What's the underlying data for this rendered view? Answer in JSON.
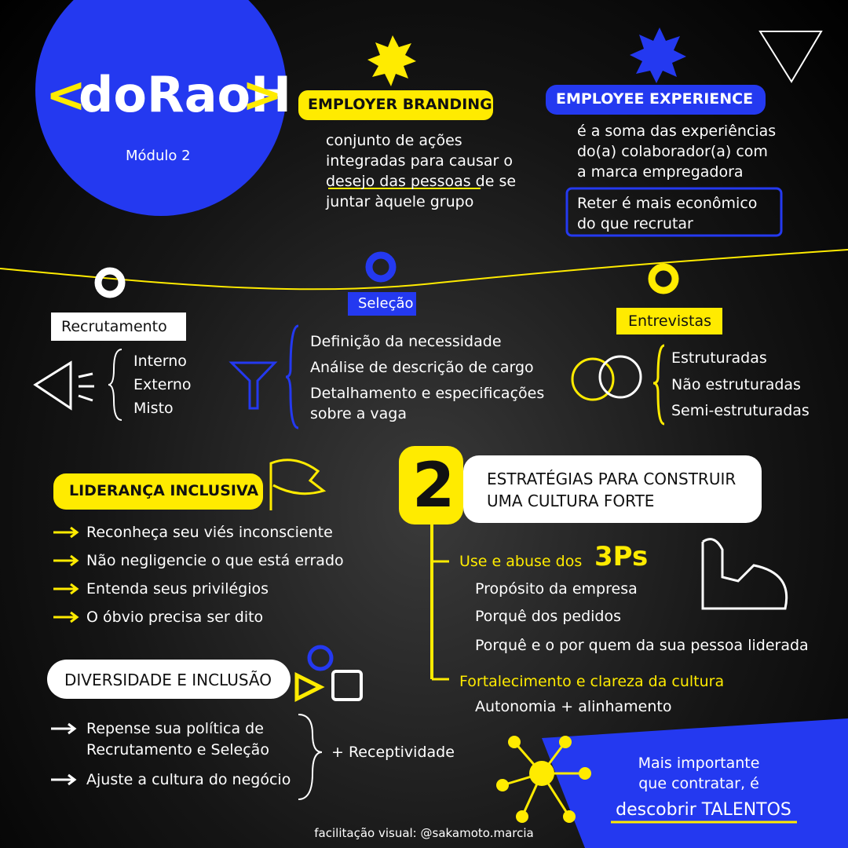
{
  "logo": {
    "open": "<",
    "name": "doRaoH",
    "close": ">",
    "module": "Módulo 2"
  },
  "employer_branding": {
    "title": "EMPLOYER BRANDING",
    "lines": [
      "conjunto de ações",
      "integradas para causar o",
      "desejo das pessoas de se",
      "juntar àquele grupo"
    ]
  },
  "employee_experience": {
    "title": "EMPLOYEE EXPERIENCE",
    "lines": [
      "é a soma das experiências",
      "do(a) colaborador(a) com",
      "a marca empregadora"
    ],
    "note": [
      "Reter é mais econômico",
      "do que recrutar"
    ]
  },
  "recrutamento": {
    "title": "Recrutamento",
    "items": [
      "Interno",
      "Externo",
      "Misto"
    ]
  },
  "selecao": {
    "title": "Seleção",
    "items": [
      "Definição da necessidade",
      "Análise de descrição de cargo",
      "Detalhamento e especificações",
      "sobre a vaga"
    ]
  },
  "entrevistas": {
    "title": "Entrevistas",
    "items": [
      "Estruturadas",
      "Não estruturadas",
      "Semi-estruturadas"
    ]
  },
  "estrategias": {
    "number": "2",
    "title": [
      "ESTRATÉGIAS PARA CONSTRUIR",
      "UMA CULTURA FORTE"
    ],
    "use": "Use e abuse dos",
    "ps": "3Ps",
    "ps_items": [
      "Propósito da empresa",
      "Porquê dos pedidos",
      "Porquê e o por quem da sua pessoa liderada"
    ],
    "fortalecimento": "Fortalecimento e clareza da cultura",
    "autonomia": "Autonomia + alinhamento"
  },
  "lideranca": {
    "title": "LIDERANÇA INCLUSIVA",
    "items": [
      "Reconheça seu viés inconsciente",
      "Não negligencie o que está errado",
      "Entenda seus privilégios",
      "O óbvio precisa ser dito"
    ]
  },
  "diversidade": {
    "title": "DIVERSIDADE E INCLUSÃO",
    "items": [
      "Repense sua política de",
      "Recrutamento e Seleção",
      "Ajuste a cultura do negócio"
    ],
    "extra": "+ Receptividade"
  },
  "talentos": {
    "lines": [
      "Mais importante",
      "que contratar, é",
      "descobrir TALENTOS"
    ]
  },
  "credit": "facilitação visual: @sakamoto.marcia"
}
